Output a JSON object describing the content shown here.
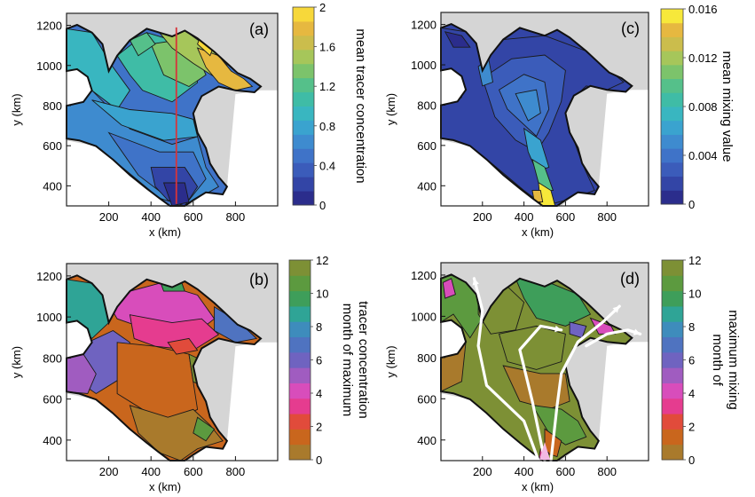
{
  "chart_data": [
    {
      "type": "heatmap",
      "panel_label": "(a)",
      "xlabel": "x (km)",
      "ylabel": "y (km)",
      "xticks": [
        200,
        400,
        600,
        800
      ],
      "yticks": [
        400,
        600,
        800,
        1000,
        1200
      ],
      "xlim": [
        0,
        1000
      ],
      "ylim": [
        300,
        1260
      ],
      "colorbar": {
        "label": "mean tracer concentration",
        "ticks": [
          "0",
          "0.4",
          "0.8",
          "1.2",
          "1.6",
          "2"
        ],
        "min": 0,
        "max": 2,
        "colors": [
          "#2b2d8c",
          "#3345a6",
          "#3b5cba",
          "#3f73c8",
          "#3e8bcf",
          "#3aa3cf",
          "#39b6c0",
          "#3fbca6",
          "#55c08a",
          "#7cc36b",
          "#a6c65a",
          "#cbbd4c",
          "#e6b840",
          "#f7d83a"
        ]
      },
      "section_line": {
        "x": 520,
        "y_range": [
          310,
          1190
        ],
        "color": "#d8343a"
      }
    },
    {
      "type": "heatmap",
      "panel_label": "(b)",
      "xlabel": "x (km)",
      "ylabel": "y (km)",
      "xticks": [
        200,
        400,
        600,
        800
      ],
      "yticks": [
        400,
        600,
        800,
        1000,
        1200
      ],
      "xlim": [
        0,
        1000
      ],
      "ylim": [
        300,
        1260
      ],
      "colorbar": {
        "label": [
          "month of maximum",
          "tracer concentration"
        ],
        "ticks": [
          "0",
          "2",
          "4",
          "6",
          "8",
          "10",
          "12"
        ],
        "min": 0,
        "max": 12,
        "colors": [
          "#a97a2c",
          "#c9661d",
          "#e14b3b",
          "#e53c8f",
          "#d84dbb",
          "#a05cc0",
          "#6f63c0",
          "#4f73c0",
          "#3e8cbc",
          "#2fa496",
          "#3e9e5a",
          "#5c9a3f",
          "#7d9035"
        ]
      }
    },
    {
      "type": "heatmap",
      "panel_label": "(c)",
      "xlabel": "x (km)",
      "ylabel": "y (km)",
      "xticks": [
        200,
        400,
        600,
        800
      ],
      "yticks": [
        400,
        600,
        800,
        1000,
        1200
      ],
      "xlim": [
        0,
        1000
      ],
      "ylim": [
        300,
        1260
      ],
      "colorbar": {
        "label": "mean mixing value",
        "ticks": [
          "0",
          "0.004",
          "0.008",
          "0.012",
          "0.016"
        ],
        "min": 0,
        "max": 0.016,
        "colors": [
          "#2b2d8c",
          "#3345a6",
          "#3b5cba",
          "#3f73c8",
          "#3e8bcf",
          "#3aa3cf",
          "#39b6c0",
          "#3fbca6",
          "#55c08a",
          "#7cc36b",
          "#a6c65a",
          "#cbbd4c",
          "#e6b840",
          "#f7e83a"
        ]
      }
    },
    {
      "type": "heatmap",
      "panel_label": "(d)",
      "xlabel": "x (km)",
      "ylabel": "y (km)",
      "xticks": [
        200,
        400,
        600,
        800
      ],
      "yticks": [
        400,
        600,
        800,
        1000,
        1200
      ],
      "xlim": [
        0,
        1000
      ],
      "ylim": [
        300,
        1260
      ],
      "colorbar": {
        "label": [
          "month of",
          "maximum mixing"
        ],
        "ticks": [
          "0",
          "2",
          "4",
          "6",
          "8",
          "10",
          "12"
        ],
        "min": 0,
        "max": 12,
        "colors": [
          "#a97a2c",
          "#c9661d",
          "#e14b3b",
          "#e53c8f",
          "#d84dbb",
          "#a05cc0",
          "#6f63c0",
          "#4f73c0",
          "#3e8cbc",
          "#2fa496",
          "#3e9e5a",
          "#5c9a3f",
          "#7d9035"
        ]
      }
    }
  ],
  "colors": {
    "land": "#d5d5d5",
    "frame": "#222222",
    "arrows": "#ffffff",
    "arrow_tip": "#f3b8e4"
  }
}
